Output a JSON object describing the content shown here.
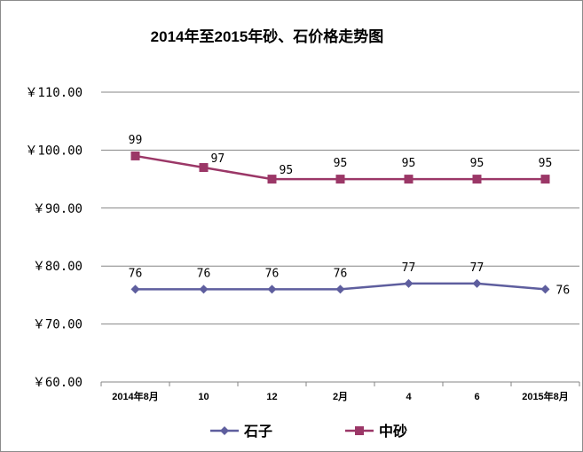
{
  "chart_data": {
    "type": "line",
    "title": "2014年至2015年砂、石价格走势图",
    "categories": [
      "2014年8月",
      "10",
      "12",
      "2月",
      "4",
      "6",
      "2015年8月"
    ],
    "y_ticks": [
      "￥60.00",
      "￥70.00",
      "￥80.00",
      "￥90.00",
      "￥100.00",
      "￥110.00"
    ],
    "ylim": [
      60,
      110
    ],
    "grid": true,
    "legend_position": "bottom",
    "series": [
      {
        "name": "石子",
        "values": [
          76,
          76,
          76,
          76,
          77,
          77,
          76
        ],
        "color": "#5e5e9e",
        "marker": "diamond"
      },
      {
        "name": "中砂",
        "values": [
          99,
          97,
          95,
          95,
          95,
          95,
          95
        ],
        "color": "#9b3767",
        "marker": "square"
      }
    ]
  }
}
